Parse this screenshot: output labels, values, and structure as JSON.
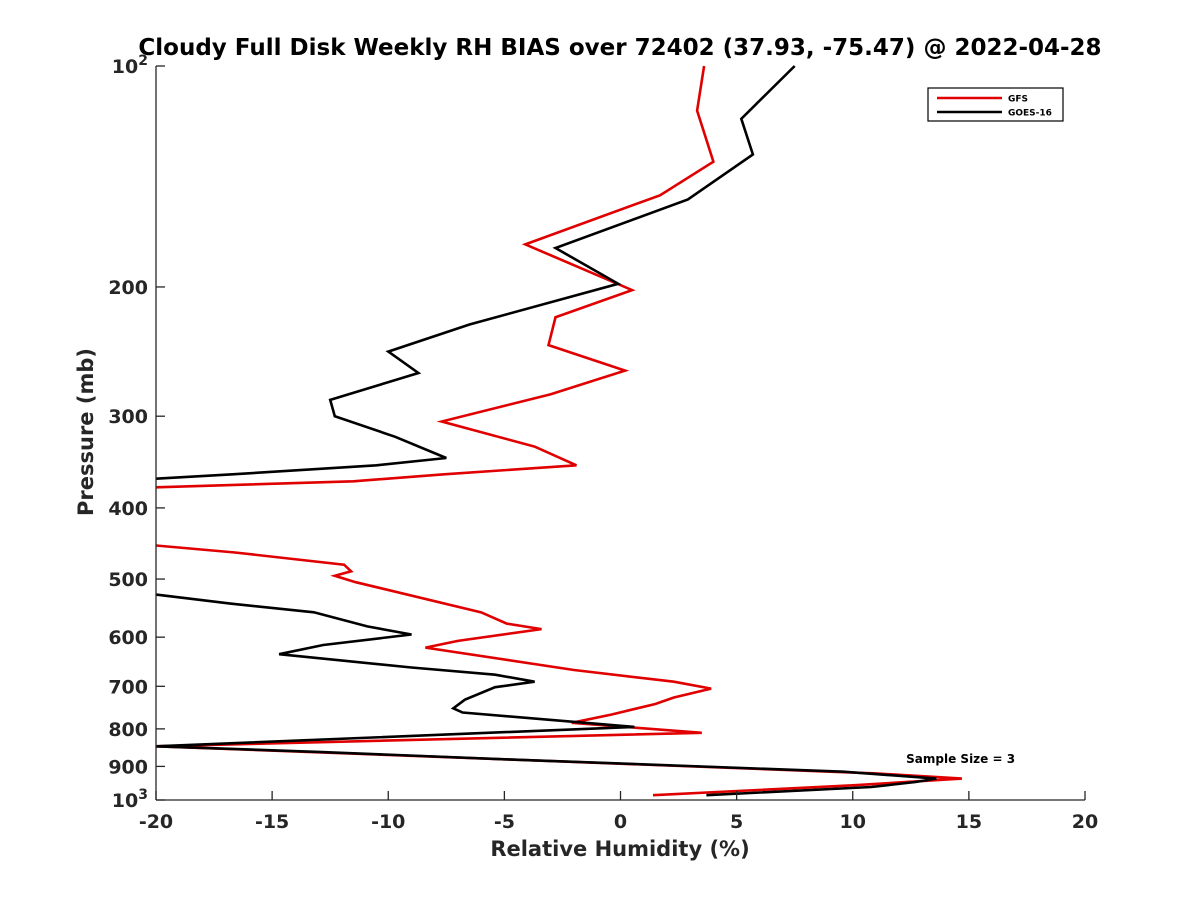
{
  "chart_data": {
    "type": "line",
    "title": "Cloudy Full Disk Weekly RH BIAS over 72402 (37.93, -75.47) @ 2022-04-28",
    "xlabel": "Relative Humidity (%)",
    "ylabel": "Pressure (mb)",
    "xlim": [
      -20,
      20
    ],
    "ylim": [
      100,
      1000
    ],
    "y_scale": "log",
    "y_reversed": true,
    "grid": false,
    "legend_position": "top-right",
    "x_ticks": [
      "-20",
      "-15",
      "-10",
      "-5",
      "0",
      "5",
      "10",
      "15",
      "20"
    ],
    "y_ticks": [
      {
        "value": 100,
        "base": "10",
        "exp": "2"
      },
      {
        "value": 200,
        "label": "200"
      },
      {
        "value": 300,
        "label": "300"
      },
      {
        "value": 400,
        "label": "400"
      },
      {
        "value": 500,
        "label": "500"
      },
      {
        "value": 600,
        "label": "600"
      },
      {
        "value": 700,
        "label": "700"
      },
      {
        "value": 800,
        "label": "800"
      },
      {
        "value": 900,
        "label": "900"
      },
      {
        "value": 1000,
        "base": "10",
        "exp": "3"
      }
    ],
    "annotation": "Sample Size = 3",
    "series": [
      {
        "name": "GFS",
        "color": "#e00000",
        "segments": [
          [
            [
              3.6,
              100
            ],
            [
              3.3,
              115
            ],
            [
              4.0,
              135
            ],
            [
              1.7,
              150
            ],
            [
              -4.1,
              175
            ],
            [
              0.5,
              202
            ],
            [
              -2.8,
              220
            ],
            [
              -3.1,
              240
            ],
            [
              0.2,
              260
            ],
            [
              -3.0,
              280
            ],
            [
              -7.7,
              305
            ],
            [
              -3.7,
              330
            ],
            [
              -1.9,
              350
            ],
            [
              -7.6,
              360
            ],
            [
              -11.5,
              368
            ],
            [
              -20,
              375
            ]
          ],
          [
            [
              -20,
              450
            ],
            [
              -16.6,
              460
            ],
            [
              -11.9,
              478
            ],
            [
              -11.6,
              488
            ],
            [
              -12.3,
              495
            ],
            [
              -11.4,
              505
            ],
            [
              -6.0,
              555
            ],
            [
              -4.9,
              575
            ],
            [
              -3.4,
              585
            ],
            [
              -7.0,
              607
            ],
            [
              -8.4,
              620
            ],
            [
              -2.0,
              665
            ],
            [
              2.3,
              690
            ],
            [
              3.9,
              705
            ],
            [
              2.3,
              725
            ],
            [
              1.5,
              740
            ],
            [
              -0.4,
              765
            ],
            [
              -2.1,
              785
            ],
            [
              3.5,
              810
            ],
            [
              -20,
              845
            ]
          ],
          [
            [
              -20,
              845
            ],
            [
              -5.0,
              880
            ],
            [
              11.0,
              920
            ],
            [
              14.7,
              935
            ],
            [
              10.0,
              955
            ],
            [
              1.4,
              985
            ]
          ]
        ]
      },
      {
        "name": "GOES-16",
        "color": "#000000",
        "segments": [
          [
            [
              7.5,
              100
            ],
            [
              5.2,
              118
            ],
            [
              5.7,
              132
            ],
            [
              2.9,
              152
            ],
            [
              -2.8,
              177
            ],
            [
              -0.1,
              198
            ],
            [
              -6.5,
              225
            ],
            [
              -10.0,
              245
            ],
            [
              -8.7,
              262
            ],
            [
              -12.5,
              285
            ],
            [
              -12.3,
              300
            ],
            [
              -9.7,
              320
            ],
            [
              -7.5,
              342
            ],
            [
              -10.5,
              350
            ],
            [
              -16.7,
              360
            ],
            [
              -20,
              365
            ]
          ],
          [
            [
              -20,
              525
            ],
            [
              -16.8,
              540
            ],
            [
              -13.2,
              555
            ],
            [
              -10.9,
              580
            ],
            [
              -9.0,
              595
            ],
            [
              -12.8,
              615
            ],
            [
              -14.7,
              633
            ],
            [
              -9.0,
              660
            ],
            [
              -5.4,
              675
            ],
            [
              -3.7,
              690
            ],
            [
              -5.4,
              702
            ],
            [
              -6.7,
              730
            ],
            [
              -7.2,
              750
            ],
            [
              -6.8,
              760
            ],
            [
              0.6,
              795
            ],
            [
              -20,
              845
            ]
          ],
          [
            [
              -20,
              845
            ],
            [
              -13.0,
              860
            ],
            [
              -5.0,
              880
            ],
            [
              9.6,
              915
            ],
            [
              13.6,
              935
            ],
            [
              12.7,
              945
            ],
            [
              10.8,
              960
            ],
            [
              3.7,
              985
            ]
          ]
        ]
      }
    ]
  }
}
